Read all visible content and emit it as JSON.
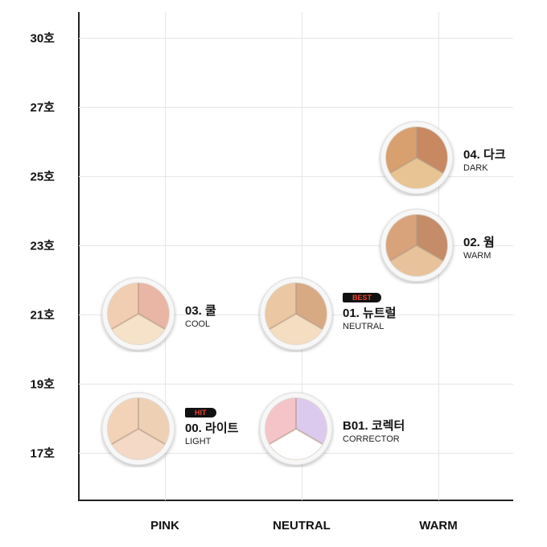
{
  "y_axis": {
    "ticks": [
      "30호",
      "27호",
      "25호",
      "23호",
      "21호",
      "19호",
      "17호"
    ]
  },
  "x_axis": {
    "ticks": [
      "PINK",
      "NEUTRAL",
      "WARM"
    ]
  },
  "products": [
    {
      "code": "03. 쿨",
      "name": "COOL",
      "undertone": "PINK",
      "shade": "21호",
      "badge": "",
      "colors": [
        "#f1cdb2",
        "#e9b6a5",
        "#f6e2c9"
      ]
    },
    {
      "code": "00. 라이트",
      "name": "LIGHT",
      "undertone": "PINK",
      "shade": "17호",
      "badge": "HIT",
      "colors": [
        "#f2d3b7",
        "#eed0b4",
        "#f4d9c6"
      ]
    },
    {
      "code": "01. 뉴트럴",
      "name": "NEUTRAL",
      "undertone": "NEUTRAL",
      "shade": "21호",
      "badge": "BEST",
      "colors": [
        "#ebc7a3",
        "#d7aa84",
        "#f4ddc1"
      ]
    },
    {
      "code": "B01. 코렉터",
      "name": "CORRECTOR",
      "undertone": "NEUTRAL",
      "shade": "17호",
      "badge": "",
      "colors": [
        "#f5c4c8",
        "#dccaee",
        "#ffffff"
      ]
    },
    {
      "code": "02. 웜",
      "name": "WARM",
      "undertone": "WARM",
      "shade": "23호",
      "badge": "",
      "colors": [
        "#d8a27b",
        "#c48c68",
        "#e8c29b"
      ]
    },
    {
      "code": "04. 다크",
      "name": "DARK",
      "undertone": "WARM",
      "shade": "25호+",
      "badge": "",
      "colors": [
        "#d89f6f",
        "#c88962",
        "#e8c494"
      ]
    }
  ]
}
